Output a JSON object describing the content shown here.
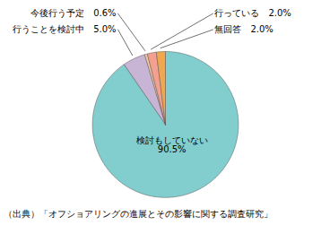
{
  "chart_data": {
    "type": "pie",
    "categories": [
      "検討もしていない",
      "行うことを検討中",
      "今後行う予定",
      "行っている",
      "無回答"
    ],
    "values": [
      90.5,
      5.0,
      0.6,
      2.0,
      2.0
    ],
    "colors": [
      "#82CECE",
      "#C8B4D4",
      "#F5C89A",
      "#F4A090",
      "#F0A850"
    ],
    "data_labels": true,
    "value_labels": [
      "検討もしていない\n90.5%",
      "行うことを検討中　5.0%",
      "今後行う予定　0.6%",
      "行っている　2.0%",
      "無回答　2.0%"
    ],
    "annotations": [
      "（出典）「オフショアリングの進展とその影響に関する調査研究」"
    ]
  }
}
